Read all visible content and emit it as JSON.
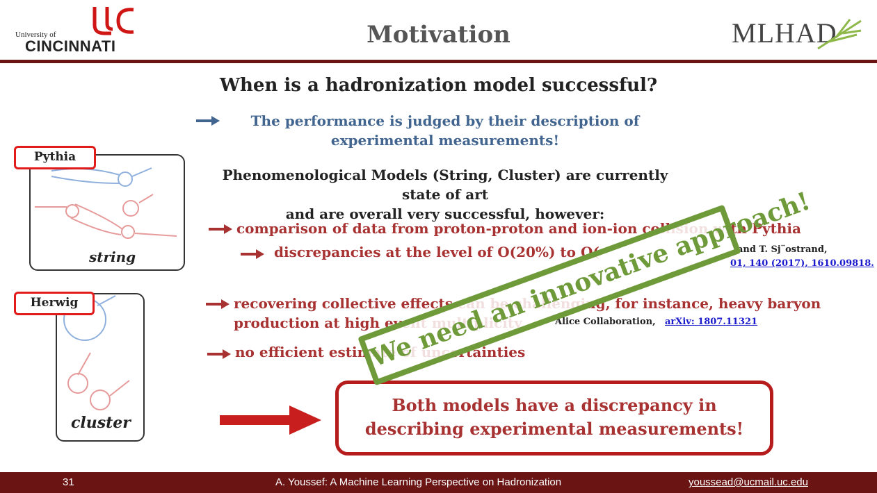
{
  "header": {
    "title": "Motivation",
    "university_small": "University of",
    "university_name": "CINCINNATI",
    "mlhad_logo": "MLHAD"
  },
  "question": "When is a hadronization model successful?",
  "performance": [
    "The performance is judged by their description of",
    "experimental measurements!"
  ],
  "phenomenological": [
    "Phenomenological Models (String, Cluster) are currently state of art",
    "and are overall very successful, however:"
  ],
  "bullets": {
    "b1": "comparison of data from proton-proton and ion-ion collision with Pythia",
    "b1_sub": "discrepancies at the level of O(20%) to O(",
    "b1_ref_text": "and T. Sj¨ostrand,",
    "b1_ref_link": "01, 140 (2017), 1610.09818.",
    "b2_line1": "recovering collective effects can be challenging, for instance, heavy baryon",
    "b2_line2": "production at high event multiplicity",
    "b2_ref_text": "Alice Collaboration,",
    "b2_ref_link": "arXiv: 1807.11321",
    "b3": "no efficient estimate of uncertainties"
  },
  "diagrams": {
    "pythia_tag": "Pythia",
    "pythia_label": "string",
    "herwig_tag": "Herwig",
    "herwig_label": "cluster"
  },
  "conclusion": [
    "Both models have a discrepancy in",
    "describing experimental measurements!"
  ],
  "stamp": "We need an innovative approach!",
  "footer": {
    "page": "31",
    "talk": "A. Youssef: A Machine Learning Perspective on Hadronization",
    "email": "youssead@ucmail.uc.edu"
  },
  "colors": {
    "maroon": "#6b1414",
    "blue_text": "#41658f",
    "red_text": "#a83232",
    "stamp_green": "#6f9a3a",
    "box_red": "#b71c1c"
  }
}
